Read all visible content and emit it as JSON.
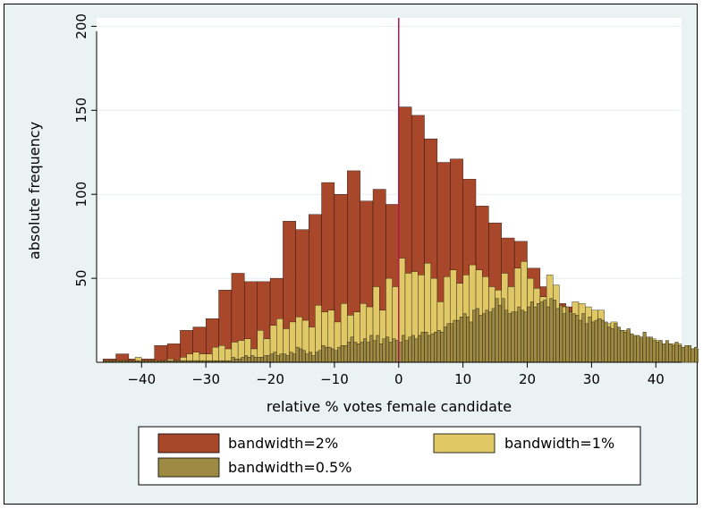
{
  "chart_data": {
    "type": "bar",
    "title": "",
    "xlabel": "relative % votes female candidate",
    "ylabel": "absolute frequency",
    "xlim": [
      -47,
      44
    ],
    "ylim": [
      0,
      205
    ],
    "xticks": [
      -40,
      -30,
      -20,
      -10,
      0,
      10,
      20,
      30,
      40
    ],
    "xtick_labels": [
      "−40",
      "−30",
      "−20",
      "−10",
      "0",
      "10",
      "20",
      "30",
      "40"
    ],
    "yticks": [
      50,
      100,
      150,
      200
    ],
    "ytick_labels": [
      "50",
      "100",
      "150",
      "200"
    ],
    "reference_line": {
      "x": 0,
      "color": "#b0174e"
    },
    "grid": true,
    "legend_position": "bottom",
    "series": [
      {
        "name": "bandwidth=2%",
        "color": "#a8472a",
        "bin_width": 2,
        "x_start": -46,
        "values": [
          2,
          5,
          2,
          2,
          10,
          11,
          19,
          21,
          26,
          43,
          53,
          48,
          48,
          50,
          84,
          79,
          88,
          107,
          100,
          114,
          96,
          103,
          94,
          152,
          147,
          133,
          119,
          121,
          109,
          93,
          83,
          74,
          72,
          56,
          45,
          35,
          33,
          30,
          17,
          14,
          11,
          13,
          8,
          6,
          2,
          0
        ]
      },
      {
        "name": "bandwidth=1%",
        "color": "#e0c867",
        "bin_width": 1,
        "x_start": -46,
        "values": [
          0,
          1,
          1,
          1,
          1,
          3,
          1,
          1,
          0,
          1,
          2,
          1,
          3,
          5,
          6,
          5,
          5,
          9,
          10,
          8,
          12,
          13,
          14,
          8,
          19,
          14,
          22,
          26,
          20,
          24,
          27,
          25,
          21,
          34,
          30,
          31,
          24,
          35,
          28,
          30,
          35,
          33,
          45,
          31,
          50,
          45,
          62,
          53,
          54,
          52,
          59,
          50,
          36,
          51,
          55,
          47,
          52,
          58,
          55,
          51,
          45,
          43,
          53,
          45,
          56,
          60,
          50,
          44,
          39,
          52,
          46,
          33,
          29,
          36,
          35,
          33,
          31,
          31,
          23,
          24,
          19,
          19,
          15,
          13,
          14,
          14,
          13,
          9,
          11,
          11,
          8,
          8,
          5,
          5,
          6,
          5,
          2,
          4,
          5,
          3,
          2,
          4,
          1,
          2,
          1,
          1,
          1,
          1,
          0,
          0
        ]
      },
      {
        "name": "bandwidth=0.5%",
        "color": "#9e8a42",
        "bin_width": 0.5,
        "x_start": -46,
        "values": [
          1,
          1,
          1,
          1,
          1,
          1,
          1,
          1,
          1,
          1,
          1,
          1,
          1,
          1,
          1,
          1,
          1,
          1,
          1,
          1,
          1,
          1,
          1,
          1,
          1,
          1,
          1,
          1,
          1,
          1,
          1,
          1,
          1,
          1,
          1,
          1,
          1,
          1,
          1,
          1,
          3,
          2,
          2,
          3,
          4,
          3,
          4,
          3,
          3,
          3,
          4,
          4,
          5,
          6,
          4,
          5,
          5,
          4,
          6,
          5,
          9,
          8,
          7,
          5,
          6,
          4,
          6,
          7,
          10,
          9,
          9,
          8,
          7,
          9,
          10,
          10,
          12,
          15,
          12,
          11,
          12,
          14,
          12,
          16,
          13,
          16,
          11,
          14,
          15,
          12,
          14,
          13,
          12,
          16,
          13,
          15,
          16,
          14,
          16,
          18,
          18,
          16,
          17,
          18,
          19,
          18,
          21,
          23,
          23,
          25,
          25,
          27,
          29,
          27,
          24,
          31,
          32,
          28,
          29,
          31,
          30,
          32,
          38,
          34,
          38,
          31,
          29,
          30,
          30,
          33,
          31,
          30,
          33,
          36,
          33,
          35,
          36,
          37,
          33,
          38,
          37,
          32,
          34,
          29,
          33,
          30,
          29,
          28,
          25,
          29,
          23,
          27,
          24,
          25,
          26,
          25,
          24,
          21,
          20,
          23,
          21,
          19,
          18,
          20,
          17,
          16,
          16,
          15,
          18,
          15,
          15,
          13,
          12,
          13,
          11,
          13,
          11,
          10,
          12,
          10,
          9,
          10,
          10,
          8,
          9,
          8,
          7,
          8,
          7,
          8,
          8,
          6,
          7,
          7,
          6,
          5,
          5,
          6,
          5,
          4,
          5,
          4,
          5,
          4,
          4,
          3,
          3,
          3,
          2,
          2,
          2,
          2,
          2,
          2,
          2,
          1,
          2,
          2,
          1,
          1,
          1,
          1,
          1,
          1,
          1,
          1,
          0,
          0,
          0,
          0,
          0,
          0,
          0,
          0,
          0
        ]
      }
    ]
  }
}
